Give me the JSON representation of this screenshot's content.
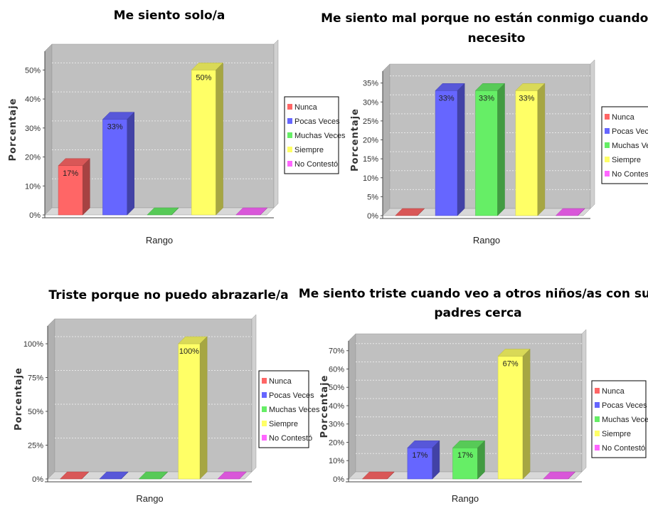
{
  "chart_data": [
    {
      "type": "bar",
      "title": "Me siento solo/a",
      "xlabel": "Rango",
      "ylabel": "Porcentaje",
      "ylim": [
        0,
        55
      ],
      "yticks": [
        "0%",
        "10%",
        "20%",
        "30%",
        "40%",
        "50%"
      ],
      "ytick_values": [
        0,
        10,
        20,
        30,
        40,
        50
      ],
      "categories": [
        "Nunca",
        "Pocas Veces",
        "Muchas Veces",
        "Siempre",
        "No Contestó"
      ],
      "values": [
        17,
        33,
        0,
        50,
        0
      ],
      "data_labels": [
        "17%",
        "33%",
        "",
        "50%",
        ""
      ],
      "legend_position": "right",
      "grid": true
    },
    {
      "type": "bar",
      "title": "Me siento mal porque no están conmigo cuando los necesito",
      "title_lines": [
        "Me siento mal porque no están conmigo cuando los",
        "necesito"
      ],
      "xlabel": "Rango",
      "ylabel": "Porcentaje",
      "ylim": [
        0,
        37
      ],
      "yticks": [
        "0%",
        "5%",
        "10%",
        "15%",
        "20%",
        "25%",
        "30%",
        "35%"
      ],
      "ytick_values": [
        0,
        5,
        10,
        15,
        20,
        25,
        30,
        35
      ],
      "categories": [
        "Nunca",
        "Pocas Veces",
        "Muchas Veces",
        "Siempre",
        "No Contestó"
      ],
      "values": [
        0,
        33,
        33,
        33,
        0
      ],
      "data_labels": [
        "",
        "33%",
        "33%",
        "33%",
        ""
      ],
      "legend_position": "right",
      "grid": true
    },
    {
      "type": "bar",
      "title": "Triste porque no puedo abrazarle/a",
      "xlabel": "Rango",
      "ylabel": "Porcentaje",
      "ylim": [
        0,
        110
      ],
      "yticks": [
        "0%",
        "25%",
        "50%",
        "75%",
        "100%"
      ],
      "ytick_values": [
        0,
        25,
        50,
        75,
        100
      ],
      "categories": [
        "Nunca",
        "Pocas Veces",
        "Muchas Veces",
        "Siempre",
        "No Contestó"
      ],
      "values": [
        0,
        0,
        0,
        100,
        0
      ],
      "data_labels": [
        "",
        "",
        "",
        "100%",
        ""
      ],
      "legend_position": "right",
      "grid": true
    },
    {
      "type": "bar",
      "title": "Me siento triste cuando veo a otros niños/as con sus padres cerca",
      "title_lines": [
        "Me siento triste cuando veo a otros niños/as con sus",
        "padres cerca"
      ],
      "xlabel": "Rango",
      "ylabel": "Porcentaje",
      "ylim": [
        0,
        73
      ],
      "yticks": [
        "0%",
        "10%",
        "20%",
        "30%",
        "40%",
        "50%",
        "60%",
        "70%"
      ],
      "ytick_values": [
        0,
        10,
        20,
        30,
        40,
        50,
        60,
        70
      ],
      "categories": [
        "Nunca",
        "Pocas Veces",
        "Muchas Veces",
        "Siempre",
        "No Contestó"
      ],
      "values": [
        0,
        17,
        17,
        67,
        0
      ],
      "data_labels": [
        "",
        "17%",
        "17%",
        "67%",
        ""
      ],
      "legend_position": "right",
      "grid": true
    }
  ],
  "colors": {
    "Nunca": "#ff6666",
    "Pocas Veces": "#6666ff",
    "Muchas Veces": "#66ee66",
    "Siempre": "#ffff66",
    "No Contestó": "#ff66ff",
    "plot_background": "#c0c0c0"
  }
}
